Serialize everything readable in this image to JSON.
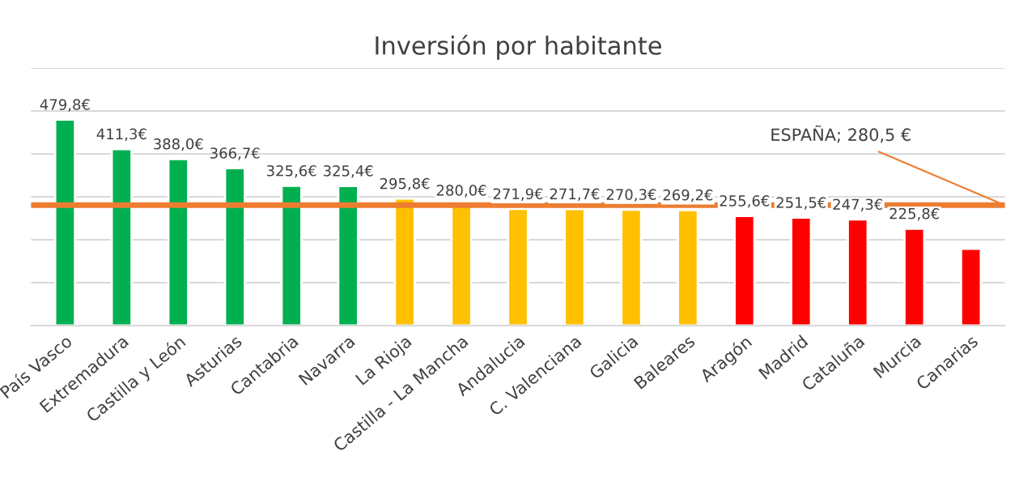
{
  "chart_data": {
    "type": "bar",
    "title": "Inversión por habitante",
    "categories": [
      "País Vasco",
      "Extremadura",
      "Castilla y León",
      "Asturias",
      "Cantabria",
      "Navarra",
      "La Rioja",
      "Castilla - La Mancha",
      "Andalucia",
      "C. Valenciana",
      "Galicia",
      "Baleares",
      "Aragón",
      "Madrid",
      "Cataluña",
      "Murcia",
      "Canarias"
    ],
    "values": [
      479.8,
      411.3,
      388.0,
      366.7,
      325.6,
      325.4,
      295.8,
      280.0,
      271.9,
      271.7,
      270.3,
      269.2,
      255.6,
      251.5,
      247.3,
      225.8,
      179
    ],
    "value_labels": [
      "479,8€",
      "411,3€",
      "388,0€",
      "366,7€",
      "325,6€",
      "325,4€",
      "295,8€",
      "280,0€",
      "271,9€",
      "271,7€",
      "270,3€",
      "269,2€",
      "255,6€",
      "251,5€",
      "247,3€",
      "225,8€",
      null
    ],
    "colors": [
      "#00b050",
      "#00b050",
      "#00b050",
      "#00b050",
      "#00b050",
      "#00b050",
      "#ffc000",
      "#ffc000",
      "#ffc000",
      "#ffc000",
      "#ffc000",
      "#ffc000",
      "#ff0000",
      "#ff0000",
      "#ff0000",
      "#ff0000",
      "#ff0000"
    ],
    "ylim": [
      0,
      600
    ],
    "yticks": [
      {
        "value": 0,
        "label": null
      },
      {
        "value": 100,
        "label": null
      },
      {
        "value": 200,
        "label": null
      },
      {
        "value": 300,
        "label": null
      },
      {
        "value": 400,
        "label": null
      },
      {
        "value": 500,
        "label": null
      },
      {
        "value": 600,
        "label": null
      }
    ],
    "tick_labels": "x",
    "grid": "y",
    "legend": false,
    "ref_lines": [
      {
        "axis": "y",
        "value": 280.5,
        "label": "ESPAÑA; 280,5 €",
        "color": "#ed7d31",
        "line_style": "solid"
      }
    ]
  }
}
